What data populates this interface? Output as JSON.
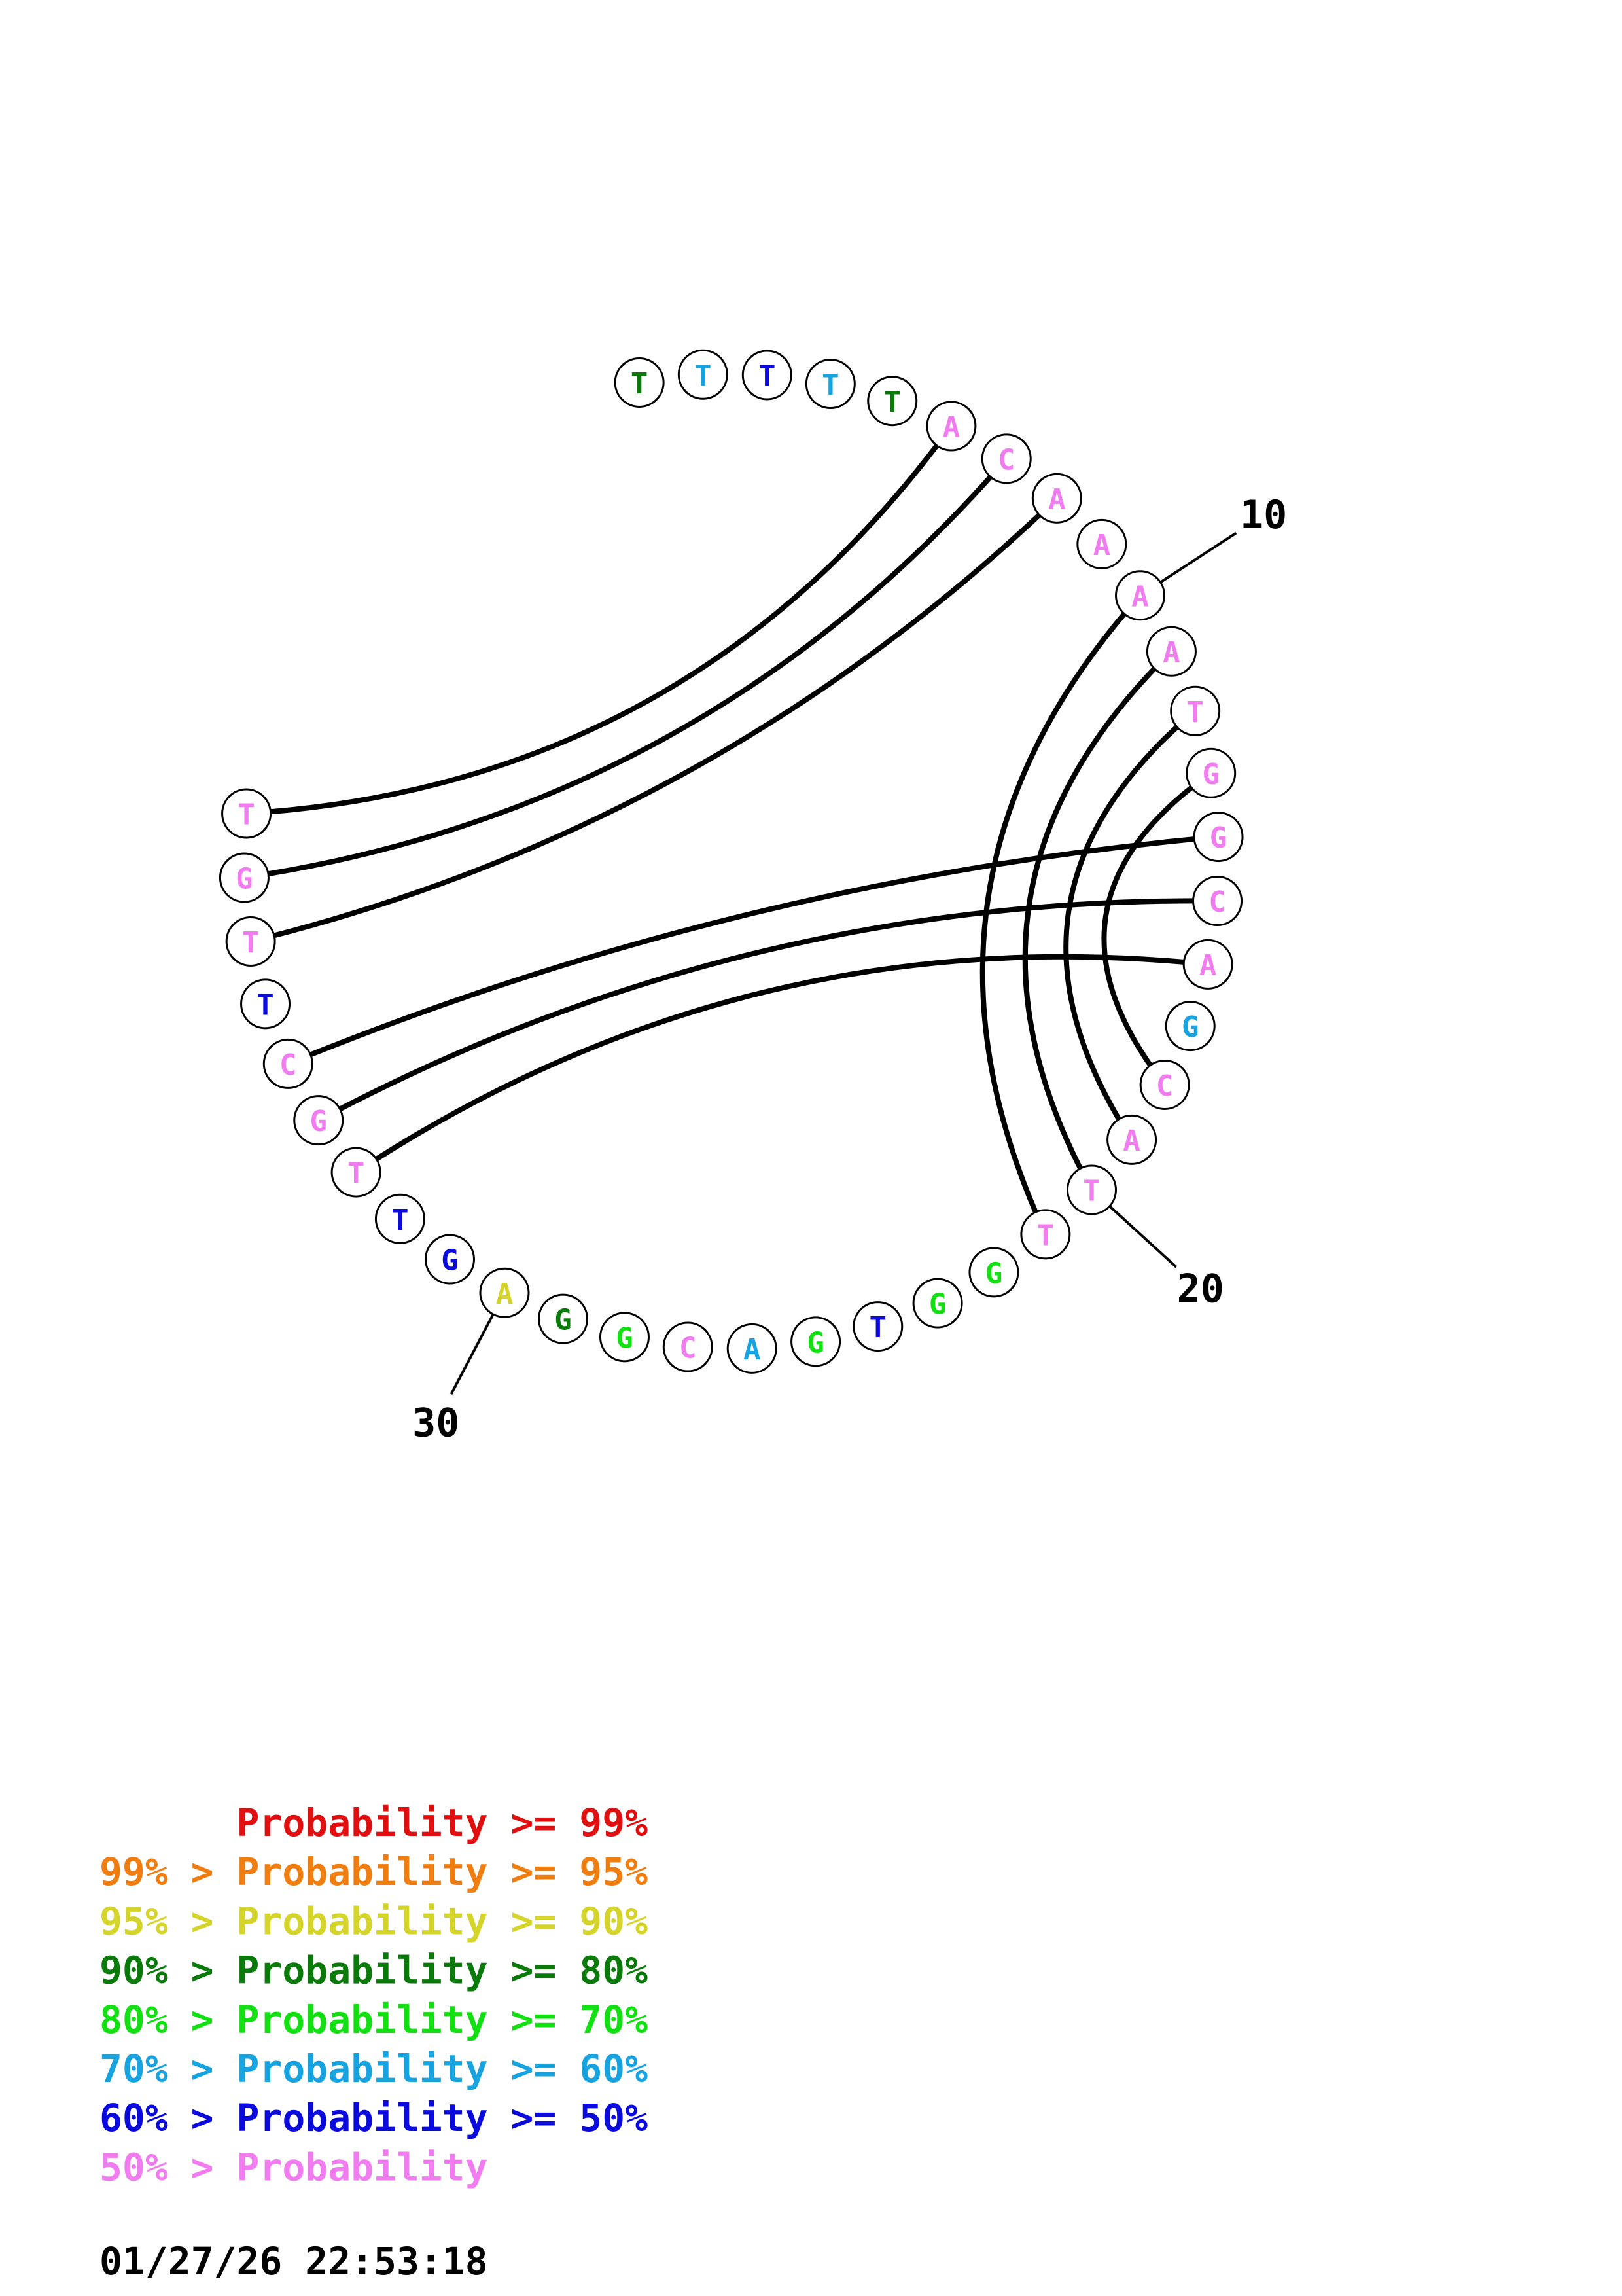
{
  "sequence": [
    {
      "base": "T",
      "color": "#0a7a0a"
    },
    {
      "base": "T",
      "color": "#17a3e0"
    },
    {
      "base": "T",
      "color": "#0a0adc"
    },
    {
      "base": "T",
      "color": "#17a3e0"
    },
    {
      "base": "T",
      "color": "#0a7a0a"
    },
    {
      "base": "A",
      "color": "#f07cf0"
    },
    {
      "base": "C",
      "color": "#f07cf0"
    },
    {
      "base": "A",
      "color": "#f07cf0"
    },
    {
      "base": "A",
      "color": "#f07cf0"
    },
    {
      "base": "A",
      "color": "#f07cf0"
    },
    {
      "base": "A",
      "color": "#f07cf0"
    },
    {
      "base": "T",
      "color": "#f07cf0"
    },
    {
      "base": "G",
      "color": "#f07cf0"
    },
    {
      "base": "G",
      "color": "#f07cf0"
    },
    {
      "base": "C",
      "color": "#f07cf0"
    },
    {
      "base": "A",
      "color": "#f07cf0"
    },
    {
      "base": "G",
      "color": "#17a3e0"
    },
    {
      "base": "C",
      "color": "#f07cf0"
    },
    {
      "base": "A",
      "color": "#f07cf0"
    },
    {
      "base": "T",
      "color": "#f07cf0"
    },
    {
      "base": "T",
      "color": "#f07cf0"
    },
    {
      "base": "G",
      "color": "#12e012"
    },
    {
      "base": "G",
      "color": "#12e012"
    },
    {
      "base": "T",
      "color": "#0a0adc"
    },
    {
      "base": "G",
      "color": "#12e012"
    },
    {
      "base": "A",
      "color": "#17a3e0"
    },
    {
      "base": "C",
      "color": "#f07cf0"
    },
    {
      "base": "G",
      "color": "#12e012"
    },
    {
      "base": "G",
      "color": "#0a7a0a"
    },
    {
      "base": "A",
      "color": "#d4d42a"
    },
    {
      "base": "G",
      "color": "#0a0adc"
    },
    {
      "base": "T",
      "color": "#0a0adc"
    },
    {
      "base": "T",
      "color": "#f07cf0"
    },
    {
      "base": "G",
      "color": "#f07cf0"
    },
    {
      "base": "C",
      "color": "#f07cf0"
    },
    {
      "base": "T",
      "color": "#0a0adc"
    },
    {
      "base": "T",
      "color": "#f07cf0"
    },
    {
      "base": "G",
      "color": "#f07cf0"
    },
    {
      "base": "T",
      "color": "#f07cf0"
    }
  ],
  "pairs": [
    [
      6,
      39
    ],
    [
      7,
      38
    ],
    [
      8,
      37
    ],
    [
      10,
      21
    ],
    [
      11,
      20
    ],
    [
      12,
      19
    ],
    [
      13,
      18
    ],
    [
      14,
      35
    ],
    [
      15,
      34
    ],
    [
      16,
      33
    ]
  ],
  "tick_labels": [
    {
      "position": 10,
      "label": "10"
    },
    {
      "position": 20,
      "label": "20"
    },
    {
      "position": 30,
      "label": "30"
    }
  ],
  "legend": [
    {
      "prefix": "",
      "text": "Probability >= 99%",
      "color": "#e01010"
    },
    {
      "prefix": "99% > ",
      "text": "Probability >= 95%",
      "color": "#f07d10"
    },
    {
      "prefix": "95% > ",
      "text": "Probability >= 90%",
      "color": "#d4d42a"
    },
    {
      "prefix": "90% > ",
      "text": "Probability >= 80%",
      "color": "#0a7a0a"
    },
    {
      "prefix": "80% > ",
      "text": "Probability >= 70%",
      "color": "#12e012"
    },
    {
      "prefix": "70% > ",
      "text": "Probability >= 60%",
      "color": "#17a3e0"
    },
    {
      "prefix": "60% > ",
      "text": "Probability >= 50%",
      "color": "#0a0adc"
    },
    {
      "prefix": "50% > ",
      "text": "Probability",
      "color": "#f07cf0"
    }
  ],
  "timestamp": "01/27/26 22:53:18"
}
